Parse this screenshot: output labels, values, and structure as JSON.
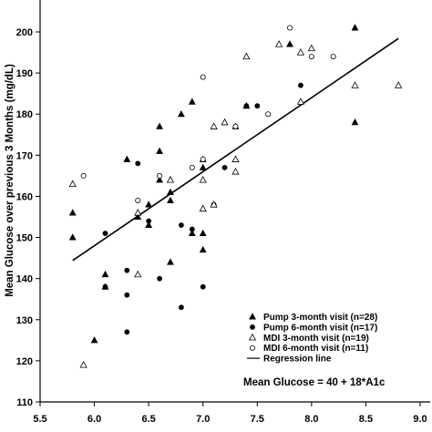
{
  "chart_data": {
    "type": "scatter",
    "title": "",
    "xlabel": "",
    "ylabel": "Mean Glucose over previous 3 Months (mg/dL)",
    "xlim": [
      5.5,
      9.0
    ],
    "ylim": [
      110,
      205
    ],
    "xticks": [
      "5.5",
      "6.0",
      "6.5",
      "7.0",
      "7.5",
      "8.0",
      "8.5",
      "9.0"
    ],
    "yticks": [
      "110",
      "120",
      "130",
      "140",
      "150",
      "160",
      "170",
      "180",
      "190",
      "200"
    ],
    "grid": false,
    "legend_position": "bottom-right",
    "annotation": "Mean Glucose = 40 + 18*A1c",
    "regression": {
      "name": "Regression line",
      "intercept": 40,
      "slope": 18,
      "x_range": [
        5.8,
        8.8
      ]
    },
    "series": [
      {
        "name": "Pump 3-month visit (n=28)",
        "marker": "triangle-filled",
        "points": [
          [
            5.8,
            156
          ],
          [
            5.8,
            150
          ],
          [
            6.0,
            125
          ],
          [
            6.1,
            141
          ],
          [
            6.1,
            138
          ],
          [
            6.3,
            169
          ],
          [
            6.4,
            155
          ],
          [
            6.5,
            153
          ],
          [
            6.5,
            158
          ],
          [
            6.6,
            177
          ],
          [
            6.6,
            171
          ],
          [
            6.6,
            164
          ],
          [
            6.7,
            164
          ],
          [
            6.7,
            161
          ],
          [
            6.7,
            159
          ],
          [
            6.7,
            144
          ],
          [
            6.8,
            180
          ],
          [
            6.9,
            183
          ],
          [
            6.9,
            151
          ],
          [
            7.0,
            169
          ],
          [
            7.0,
            167
          ],
          [
            7.0,
            151
          ],
          [
            7.0,
            147
          ],
          [
            7.3,
            177
          ],
          [
            7.4,
            182
          ],
          [
            7.8,
            197
          ],
          [
            8.4,
            201
          ],
          [
            8.4,
            178
          ]
        ]
      },
      {
        "name": "Pump 6-month visit (n=17)",
        "marker": "circle-filled",
        "points": [
          [
            6.1,
            151
          ],
          [
            6.1,
            138
          ],
          [
            6.3,
            142
          ],
          [
            6.3,
            136
          ],
          [
            6.3,
            127
          ],
          [
            6.4,
            168
          ],
          [
            6.5,
            154
          ],
          [
            6.6,
            140
          ],
          [
            6.8,
            153
          ],
          [
            6.8,
            133
          ],
          [
            6.9,
            152
          ],
          [
            7.0,
            138
          ],
          [
            7.1,
            158
          ],
          [
            7.2,
            167
          ],
          [
            7.4,
            182
          ],
          [
            7.5,
            182
          ],
          [
            7.9,
            187
          ]
        ]
      },
      {
        "name": "MDI 3-month visit (n=19)",
        "marker": "triangle-open",
        "points": [
          [
            5.8,
            163
          ],
          [
            5.9,
            119
          ],
          [
            6.4,
            141
          ],
          [
            6.4,
            156
          ],
          [
            6.7,
            164
          ],
          [
            7.0,
            164
          ],
          [
            7.0,
            157
          ],
          [
            7.1,
            177
          ],
          [
            7.1,
            158
          ],
          [
            7.2,
            178
          ],
          [
            7.3,
            166
          ],
          [
            7.3,
            169
          ],
          [
            7.4,
            194
          ],
          [
            7.7,
            197
          ],
          [
            7.9,
            183
          ],
          [
            7.9,
            195
          ],
          [
            8.0,
            196
          ],
          [
            8.4,
            187
          ],
          [
            8.8,
            187
          ]
        ]
      },
      {
        "name": "MDI 6-month visit (n=11)",
        "marker": "circle-open",
        "points": [
          [
            5.9,
            165
          ],
          [
            6.4,
            159
          ],
          [
            6.6,
            165
          ],
          [
            6.9,
            167
          ],
          [
            7.0,
            189
          ],
          [
            7.0,
            169
          ],
          [
            7.3,
            177
          ],
          [
            7.6,
            180
          ],
          [
            7.8,
            201
          ],
          [
            8.0,
            194
          ],
          [
            8.2,
            194
          ]
        ]
      }
    ]
  }
}
